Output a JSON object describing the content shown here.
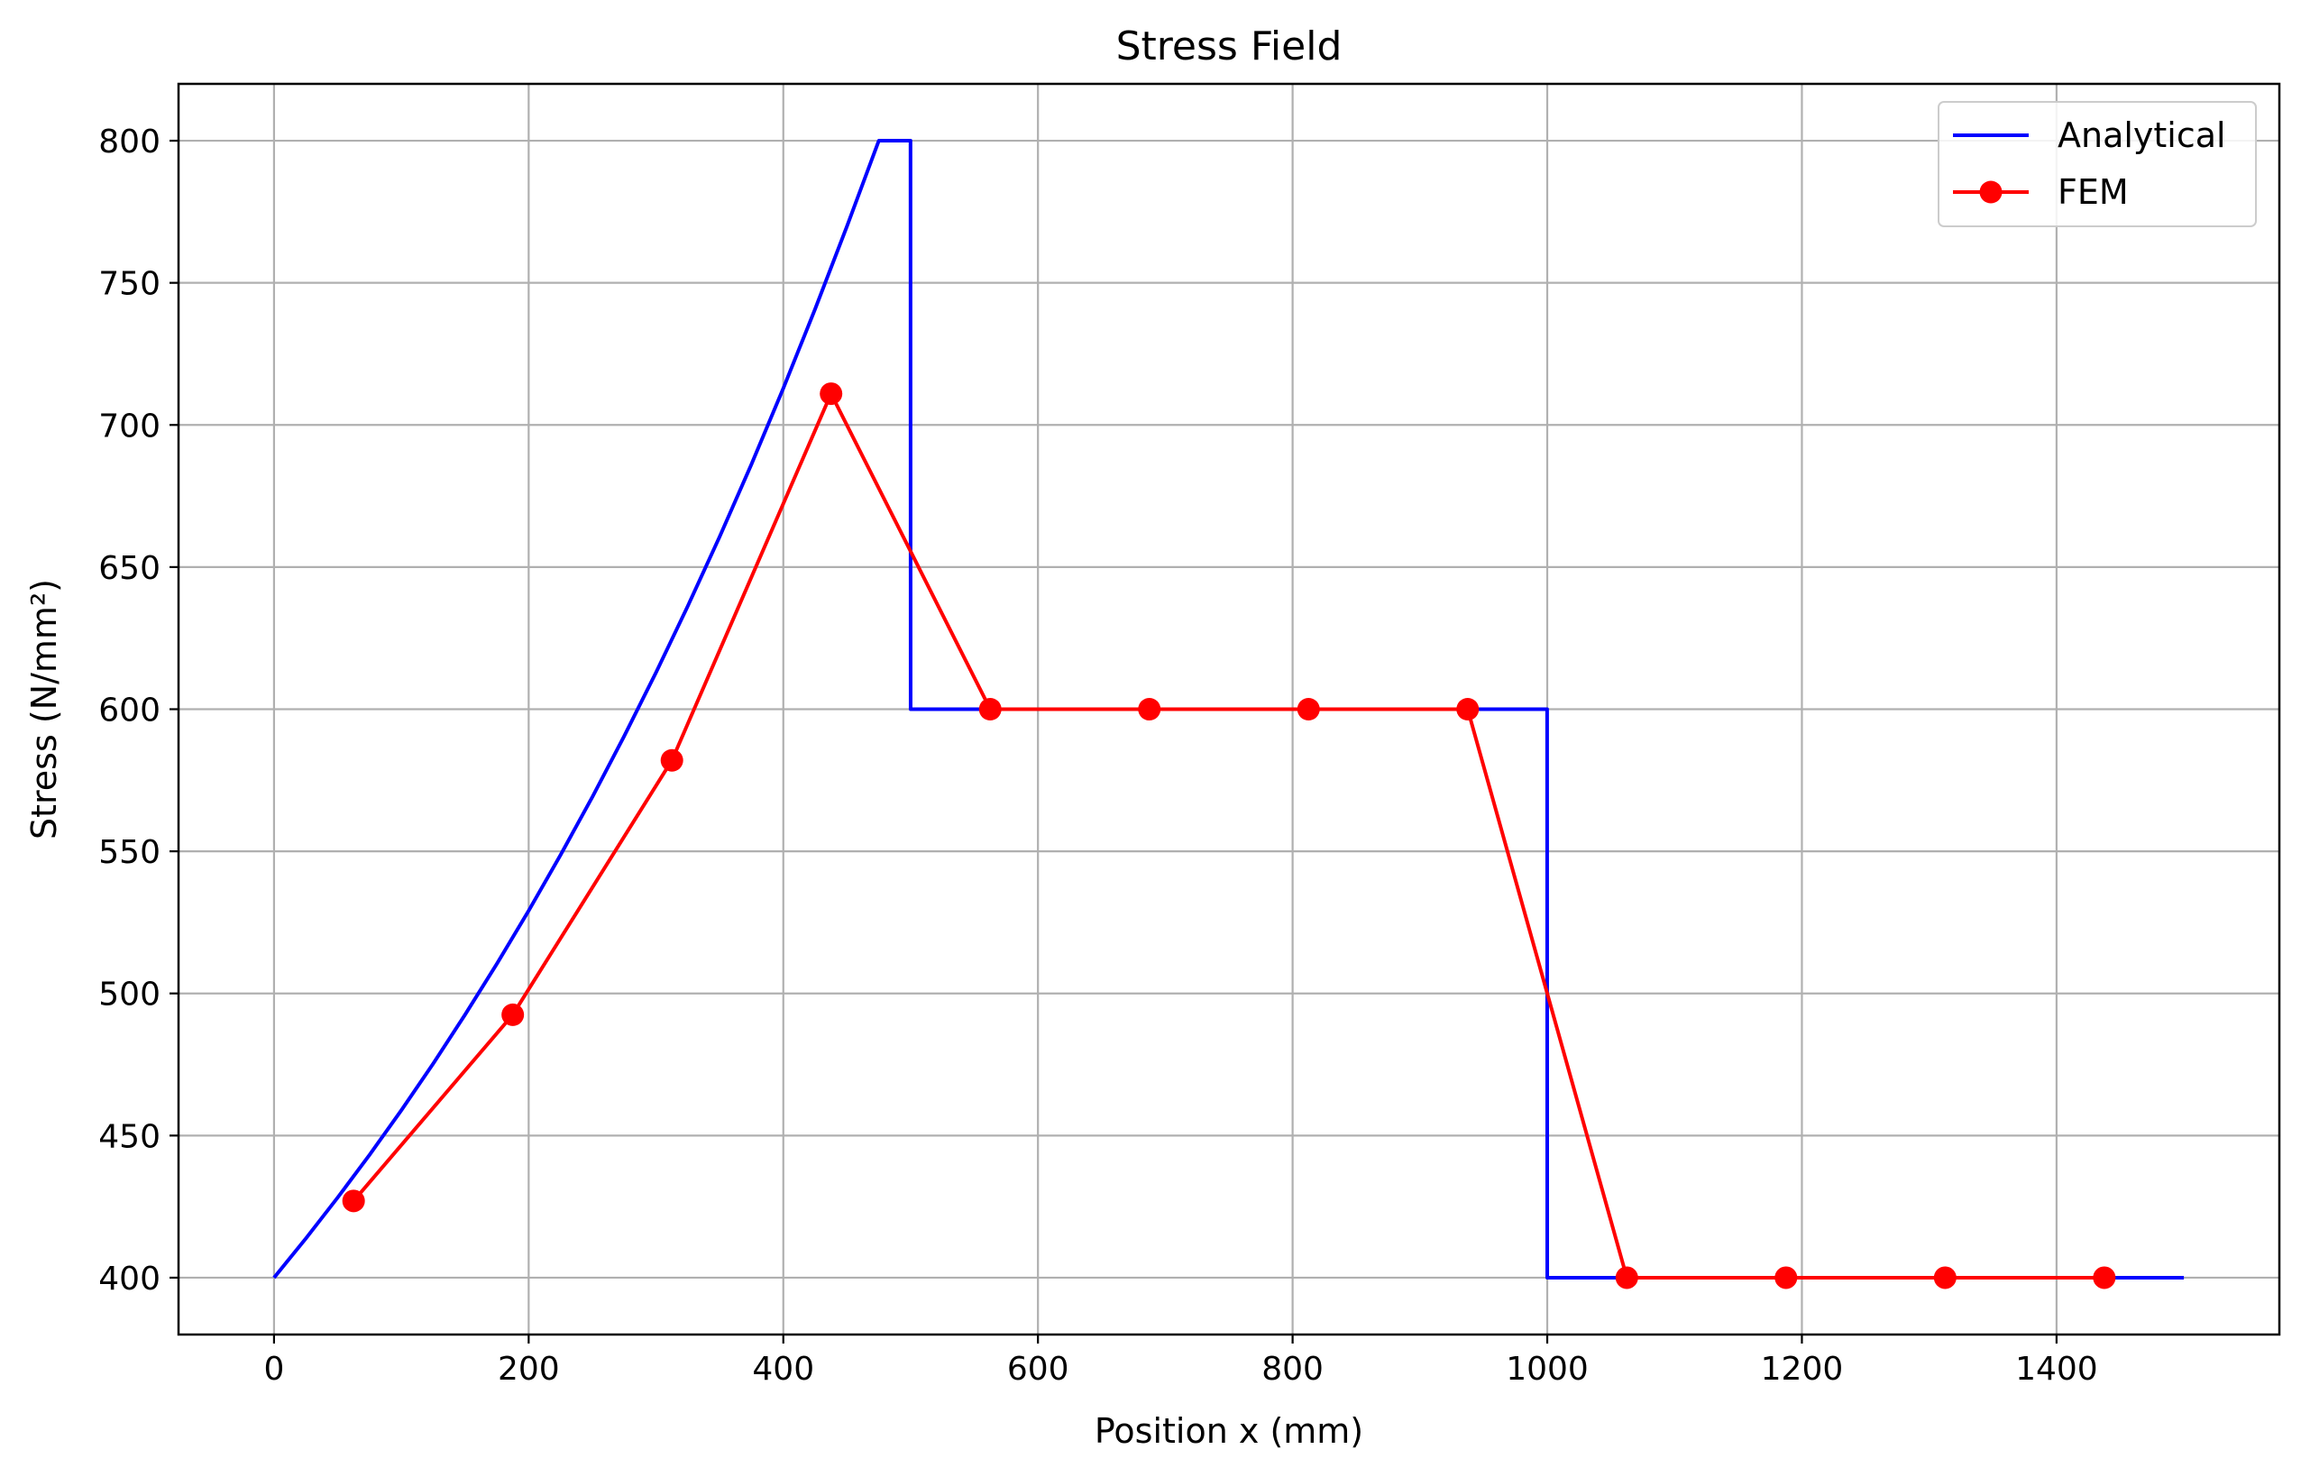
{
  "chart_data": {
    "type": "line",
    "title": "Stress Field",
    "xlabel": "Position x (mm)",
    "ylabel": "Stress (N/mm²)",
    "xlim": [
      -75,
      1575
    ],
    "ylim": [
      380,
      820
    ],
    "xticks": [
      0,
      200,
      400,
      600,
      800,
      1000,
      1200,
      1400
    ],
    "yticks": [
      400,
      450,
      500,
      550,
      600,
      650,
      700,
      750,
      800
    ],
    "grid": true,
    "legend_position": "top-right",
    "series": [
      {
        "name": "Analytical",
        "color": "#0000ff",
        "marker": "none",
        "x": [
          0,
          25,
          50,
          75,
          100,
          125,
          150,
          175,
          200,
          225,
          250,
          275,
          300,
          325,
          350,
          375,
          400,
          425,
          450,
          475,
          499.9,
          500,
          750,
          999.9,
          1000,
          1500
        ],
        "y": [
          400,
          413.8,
          428.2,
          443.2,
          458.9,
          475.3,
          492.5,
          510.4,
          529.1,
          548.7,
          569.1,
          590.5,
          612.9,
          636.3,
          660.7,
          686.2,
          712.9,
          740.8,
          769.9,
          800,
          800,
          600,
          600,
          600,
          400,
          400
        ]
      },
      {
        "name": "FEM",
        "color": "#ff0000",
        "marker": "circle",
        "x": [
          62.5,
          187.5,
          312.5,
          437.5,
          562.5,
          687.5,
          812.5,
          937.5,
          1062.5,
          1187.5,
          1312.5,
          1437.5
        ],
        "y": [
          427,
          492.5,
          582,
          711,
          600,
          600,
          600,
          600,
          400,
          400,
          400,
          400
        ]
      }
    ],
    "colors": {
      "grid": "#b0b0b0",
      "axes": "#000000",
      "legend_border": "#cccccc"
    }
  }
}
